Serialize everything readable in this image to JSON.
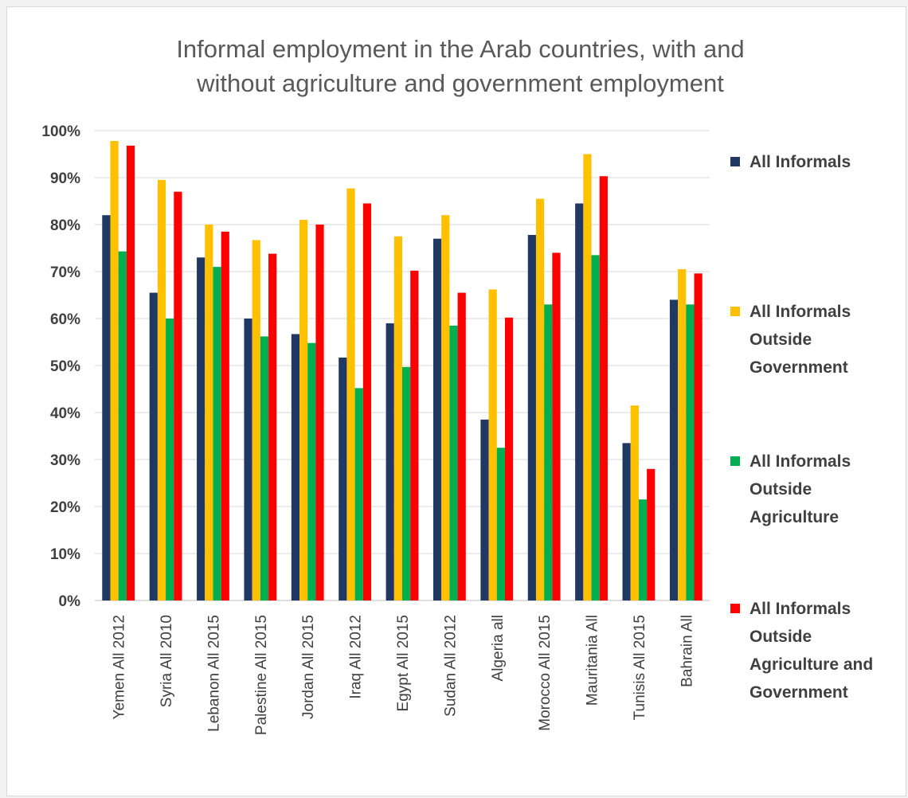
{
  "chart_data": {
    "type": "bar",
    "title_lines": [
      "Informal employment in the Arab countries, with and",
      "without agriculture and government employment"
    ],
    "categories": [
      "Yemen All 2012",
      "Syria All 2010",
      "Lebanon All 2015",
      "Palestine All 2015",
      "Jordan All 2015",
      "Iraq All 2012",
      "Egypt All 2015",
      "Sudan All 2012",
      "Algeria all",
      "Morocco All 2015",
      "Mauritania All",
      "Tunisis All 2015",
      "Bahrain All"
    ],
    "series": [
      {
        "name_lines": [
          "All Informals"
        ],
        "color": "#203864",
        "values": [
          82,
          65.5,
          73,
          60,
          56.7,
          51.7,
          59,
          77,
          38.5,
          77.8,
          84.5,
          33.5,
          64
        ]
      },
      {
        "name_lines": [
          "All Informals",
          "Outside",
          "Government"
        ],
        "color": "#ffc000",
        "values": [
          97.8,
          89.5,
          80,
          76.7,
          81,
          87.7,
          77.5,
          82,
          66.2,
          85.5,
          95,
          41.5,
          70.5
        ]
      },
      {
        "name_lines": [
          "All Informals",
          "Outside",
          "Agriculture"
        ],
        "color": "#00b050",
        "values": [
          74.3,
          60,
          71,
          56.2,
          54.8,
          45.2,
          49.7,
          58.5,
          32.5,
          63,
          73.5,
          21.5,
          63
        ]
      },
      {
        "name_lines": [
          "All Informals",
          "Outside",
          "Agriculture and",
          "Government"
        ],
        "color": "#ff0000",
        "values": [
          96.8,
          87,
          78.5,
          73.8,
          80,
          84.5,
          70.2,
          65.5,
          60.2,
          74,
          90.3,
          28,
          69.6
        ]
      }
    ],
    "yticks": [
      "0%",
      "10%",
      "20%",
      "30%",
      "40%",
      "50%",
      "60%",
      "70%",
      "80%",
      "90%",
      "100%"
    ],
    "ylim": [
      0,
      100
    ],
    "grid": true,
    "legend_position": "right"
  }
}
